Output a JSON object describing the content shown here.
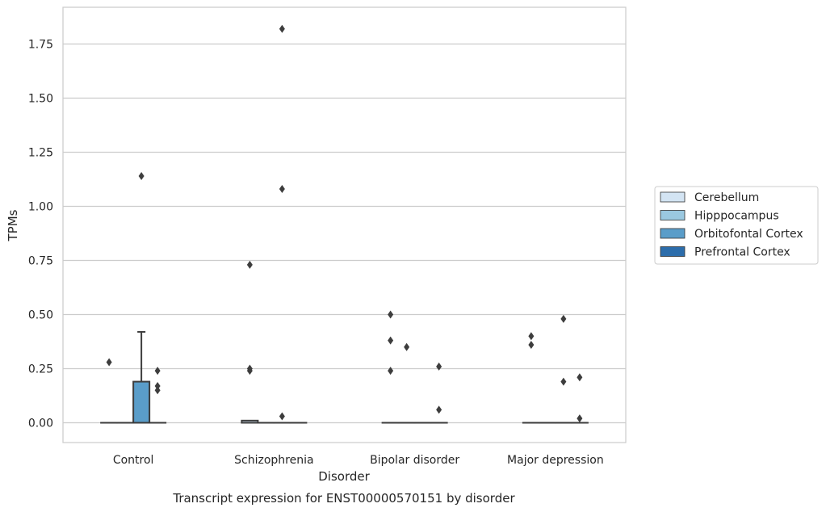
{
  "caption": "Transcript expression for ENST00000570151 by disorder",
  "chart_data": {
    "type": "box",
    "title": "",
    "xlabel": "Disorder",
    "ylabel": "TPMs",
    "categories": [
      "Control",
      "Schizophrenia",
      "Bipolar disorder",
      "Major depression"
    ],
    "ylim": [
      -0.09,
      1.92
    ],
    "yticks": [
      "0.00",
      "0.25",
      "0.50",
      "0.75",
      "1.00",
      "1.25",
      "1.50",
      "1.75"
    ],
    "grid": "horizontal",
    "legend_position": "right",
    "series": [
      {
        "name": "Cerebellum",
        "color": "#d3e4f3",
        "boxes": [
          {
            "q1": 0,
            "median": 0,
            "q3": 0,
            "whisker_low": 0,
            "whisker_high": 0,
            "outliers": [
              0.28
            ]
          },
          {
            "q1": 0,
            "median": 0,
            "q3": 0.01,
            "whisker_low": 0,
            "whisker_high": 0.01,
            "outliers": [
              0.73,
              0.25,
              0.24
            ]
          },
          {
            "q1": 0,
            "median": 0,
            "q3": 0,
            "whisker_low": 0,
            "whisker_high": 0,
            "outliers": [
              0.5,
              0.38,
              0.24
            ]
          },
          {
            "q1": 0,
            "median": 0,
            "q3": 0,
            "whisker_low": 0,
            "whisker_high": 0,
            "outliers": [
              0.4,
              0.36
            ]
          }
        ]
      },
      {
        "name": "Hipppocampus",
        "color": "#9ac8e0",
        "boxes": [
          {
            "q1": 0,
            "median": 0,
            "q3": 0,
            "whisker_low": 0,
            "whisker_high": 0,
            "outliers": []
          },
          {
            "q1": 0,
            "median": 0,
            "q3": 0,
            "whisker_low": 0,
            "whisker_high": 0,
            "outliers": []
          },
          {
            "q1": 0,
            "median": 0,
            "q3": 0,
            "whisker_low": 0,
            "whisker_high": 0,
            "outliers": [
              0.35
            ]
          },
          {
            "q1": 0,
            "median": 0,
            "q3": 0,
            "whisker_low": 0,
            "whisker_high": 0,
            "outliers": []
          }
        ]
      },
      {
        "name": "Orbitofontal Cortex",
        "color": "#5a9dc9",
        "boxes": [
          {
            "q1": 0,
            "median": 0,
            "q3": 0.19,
            "whisker_low": 0,
            "whisker_high": 0.42,
            "outliers": [
              1.14
            ]
          },
          {
            "q1": 0,
            "median": 0,
            "q3": 0,
            "whisker_low": 0,
            "whisker_high": 0,
            "outliers": [
              1.82,
              1.08,
              0.03
            ]
          },
          {
            "q1": 0,
            "median": 0,
            "q3": 0,
            "whisker_low": 0,
            "whisker_high": 0,
            "outliers": []
          },
          {
            "q1": 0,
            "median": 0,
            "q3": 0,
            "whisker_low": 0,
            "whisker_high": 0,
            "outliers": [
              0.48,
              0.19
            ]
          }
        ]
      },
      {
        "name": "Prefrontal Cortex",
        "color": "#2c6dab",
        "boxes": [
          {
            "q1": 0,
            "median": 0,
            "q3": 0,
            "whisker_low": 0,
            "whisker_high": 0,
            "outliers": [
              0.24,
              0.17,
              0.15
            ]
          },
          {
            "q1": 0,
            "median": 0,
            "q3": 0,
            "whisker_low": 0,
            "whisker_high": 0,
            "outliers": []
          },
          {
            "q1": 0,
            "median": 0,
            "q3": 0,
            "whisker_low": 0,
            "whisker_high": 0,
            "outliers": [
              0.26,
              0.06
            ]
          },
          {
            "q1": 0,
            "median": 0,
            "q3": 0,
            "whisker_low": 0,
            "whisker_high": 0,
            "outliers": [
              0.21,
              0.02
            ]
          }
        ]
      }
    ]
  }
}
